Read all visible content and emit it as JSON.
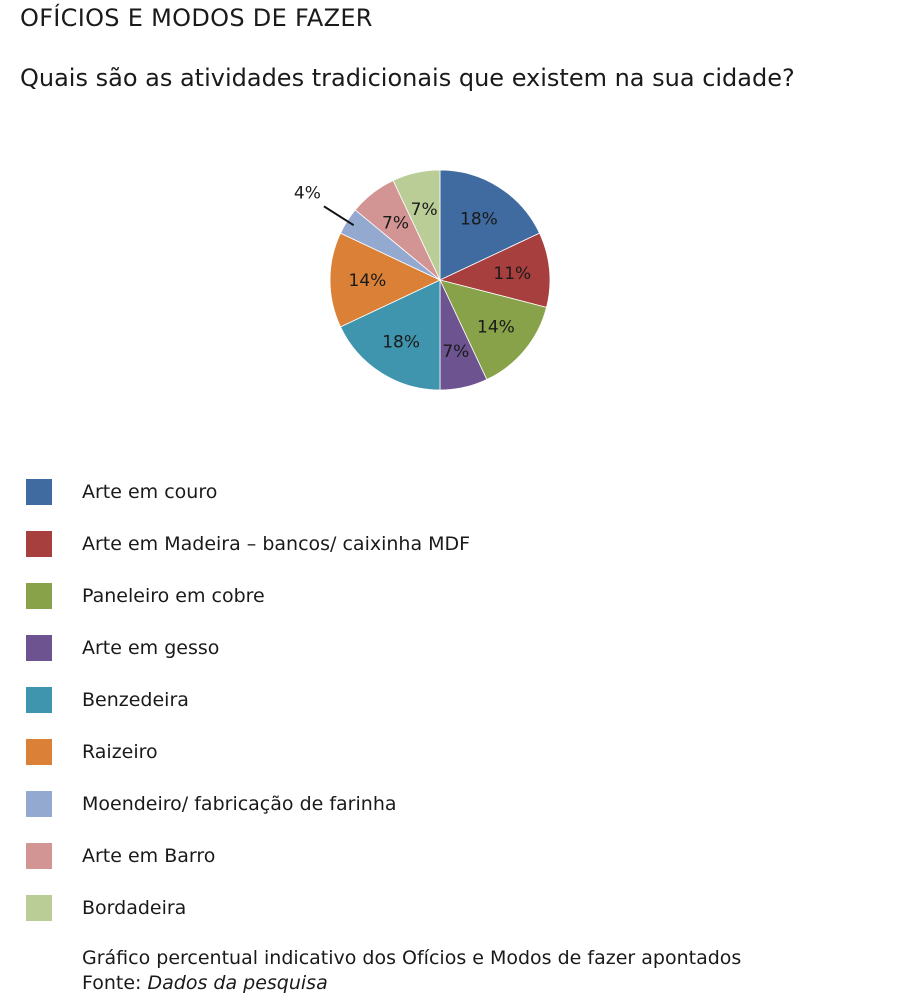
{
  "header": {
    "section_title": "OFÍCIOS E MODOS DE FAZER",
    "question": "Quais são as atividades tradicionais que existem na sua cidade?"
  },
  "chart_data": {
    "type": "pie",
    "title": "",
    "slices": [
      {
        "label": "Arte em couro",
        "value": 18,
        "display": "18%",
        "color": "#3F6BA0"
      },
      {
        "label": "Arte em Madeira – bancos/ caixinha MDF",
        "value": 11,
        "display": "11%",
        "color": "#A63F3D"
      },
      {
        "label": "Paneleiro em cobre",
        "value": 14,
        "display": "14%",
        "color": "#88A24A"
      },
      {
        "label": "Arte em gesso",
        "value": 7,
        "display": "7%",
        "color": "#6D5491"
      },
      {
        "label": "Benzedeira",
        "value": 18,
        "display": "18%",
        "color": "#3F95AE"
      },
      {
        "label": "Raizeiro",
        "value": 14,
        "display": "14%",
        "color": "#DA8137"
      },
      {
        "label": "Moendeiro/ fabricação de farinha",
        "value": 4,
        "display": "4%",
        "color": "#94A9D0"
      },
      {
        "label": "Arte em Barro",
        "value": 7,
        "display": "7%",
        "color": "#D39594"
      },
      {
        "label": "Bordadeira",
        "value": 7,
        "display": "7%",
        "color": "#BACD97"
      }
    ],
    "legend_position": "below"
  },
  "caption": {
    "line1": "Gráfico percentual indicativo dos Ofícios e Modos de fazer apontados",
    "source_prefix": "Fonte: ",
    "source_name": "Dados da pesquisa"
  }
}
